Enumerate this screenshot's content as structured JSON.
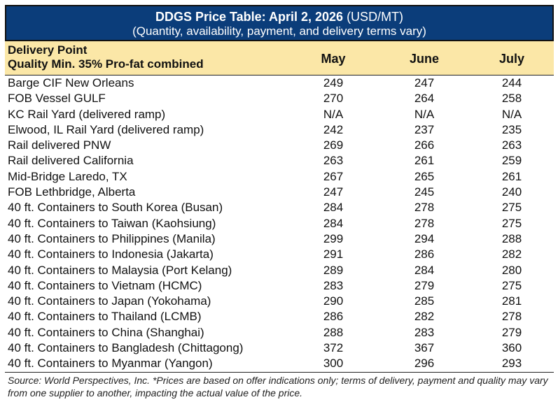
{
  "title": {
    "bold": "DDGS Price Table: April 2, 2026",
    "unit": " (USD/MT)",
    "subtitle": "(Quantity, availability, payment, and delivery terms vary)"
  },
  "header": {
    "delivery_point": "Delivery Point",
    "quality": "Quality Min. 35% Pro-fat combined",
    "columns": [
      "May",
      "June",
      "July"
    ]
  },
  "colors": {
    "title_bg": "#0b3d7a",
    "header_bg": "#fbe7a7"
  },
  "rows": [
    {
      "name": "Barge CIF New Orleans",
      "values": [
        "249",
        "247",
        "244"
      ]
    },
    {
      "name": "FOB Vessel GULF",
      "values": [
        "270",
        "264",
        "258"
      ]
    },
    {
      "name": "KC Rail Yard (delivered ramp)",
      "values": [
        "N/A",
        "N/A",
        "N/A"
      ]
    },
    {
      "name": "Elwood, IL Rail Yard (delivered ramp)",
      "values": [
        "242",
        "237",
        "235"
      ]
    },
    {
      "name": "Rail delivered PNW",
      "values": [
        "269",
        "266",
        "263"
      ]
    },
    {
      "name": "Rail delivered California",
      "values": [
        "263",
        "261",
        "259"
      ]
    },
    {
      "name": "Mid-Bridge Laredo, TX",
      "values": [
        "267",
        "265",
        "261"
      ]
    },
    {
      "name": "FOB Lethbridge, Alberta",
      "values": [
        "247",
        "245",
        "240"
      ]
    },
    {
      "name": "40 ft. Containers to South Korea (Busan)",
      "values": [
        "284",
        "278",
        "275"
      ]
    },
    {
      "name": "40 ft. Containers to Taiwan (Kaohsiung)",
      "values": [
        "284",
        "278",
        "275"
      ]
    },
    {
      "name": "40 ft. Containers to Philippines (Manila)",
      "values": [
        "299",
        "294",
        "288"
      ]
    },
    {
      "name": "40 ft. Containers to Indonesia (Jakarta)",
      "values": [
        "291",
        "286",
        "282"
      ]
    },
    {
      "name": "40 ft. Containers to Malaysia (Port Kelang)",
      "values": [
        "289",
        "284",
        "280"
      ]
    },
    {
      "name": "40 ft. Containers to Vietnam (HCMC)",
      "values": [
        "283",
        "279",
        "275"
      ]
    },
    {
      "name": "40 ft. Containers to Japan (Yokohama)",
      "values": [
        "290",
        "285",
        "281"
      ]
    },
    {
      "name": "40 ft. Containers to Thailand (LCMB)",
      "values": [
        "286",
        "282",
        "278"
      ]
    },
    {
      "name": "40 ft. Containers to China (Shanghai)",
      "values": [
        "288",
        "283",
        "279"
      ]
    },
    {
      "name": "40 ft. Containers to Bangladesh (Chittagong)",
      "values": [
        "372",
        "367",
        "360"
      ]
    },
    {
      "name": "40 ft. Containers to Myanmar (Yangon)",
      "values": [
        "300",
        "296",
        "293"
      ]
    }
  ],
  "footnote": "Source: World Perspectives, Inc. *Prices are based on offer indications only; terms of delivery, payment and quality may vary from one supplier to another, impacting the actual value of the price."
}
